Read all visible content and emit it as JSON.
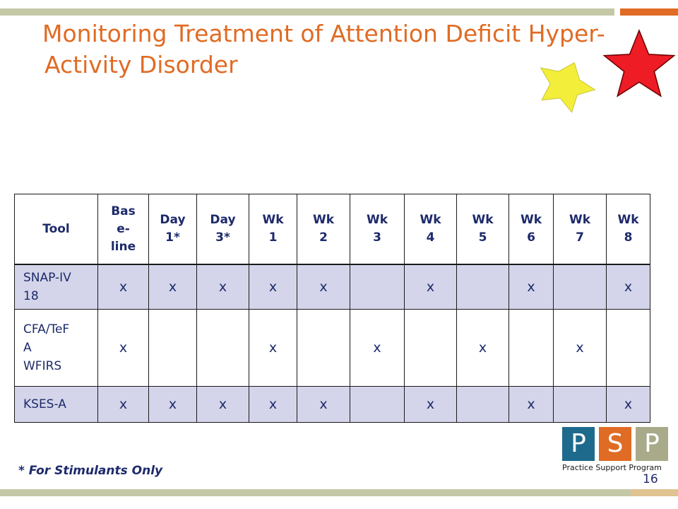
{
  "slide": {
    "title_line1": "Monitoring Treatment of Attention Deficit Hyper-",
    "title_line2": "Activity Disorder",
    "footnote": "* For Stimulants Only",
    "page_number": "16"
  },
  "colors": {
    "accent_orange": "#e06b24",
    "bar_olive": "#c4c8a6",
    "table_text": "#1d2a6b",
    "row_shade": "#d4d5ea",
    "star_yellow": "#f2ee3a",
    "star_red": "#ee1c24"
  },
  "decorations": {
    "stars": [
      {
        "name": "yellow-star-icon",
        "color": "#f2ee3a"
      },
      {
        "name": "red-star-icon",
        "color": "#ee1c24"
      }
    ]
  },
  "table": {
    "headers": [
      [
        "Tool"
      ],
      [
        "Bas",
        "e-",
        "line"
      ],
      [
        "Day",
        "1*"
      ],
      [
        "Day",
        "3*"
      ],
      [
        "Wk",
        "1"
      ],
      [
        "Wk",
        "2"
      ],
      [
        "Wk",
        "3"
      ],
      [
        "Wk",
        "4"
      ],
      [
        "Wk",
        "5"
      ],
      [
        "Wk",
        "6"
      ],
      [
        "Wk",
        "7"
      ],
      [
        "Wk",
        "8"
      ]
    ],
    "rows": [
      {
        "tool": [
          "SNAP-IV",
          "18"
        ],
        "cells": [
          "x",
          "x",
          "x",
          "x",
          "x",
          "",
          "x",
          "",
          "x",
          "",
          "x"
        ]
      },
      {
        "tool": [
          "CFA/TeF",
          "A",
          "WFIRS"
        ],
        "cells": [
          "x",
          "",
          "",
          "x",
          "",
          "x",
          "",
          "x",
          "",
          "x",
          ""
        ]
      },
      {
        "tool": [
          "KSES-A"
        ],
        "cells": [
          "x",
          "x",
          "x",
          "x",
          "x",
          "",
          "x",
          "",
          "x",
          "",
          "x"
        ]
      }
    ]
  },
  "logo": {
    "letters": [
      "P",
      "S",
      "P"
    ],
    "tagline": "Practice Support Program"
  }
}
